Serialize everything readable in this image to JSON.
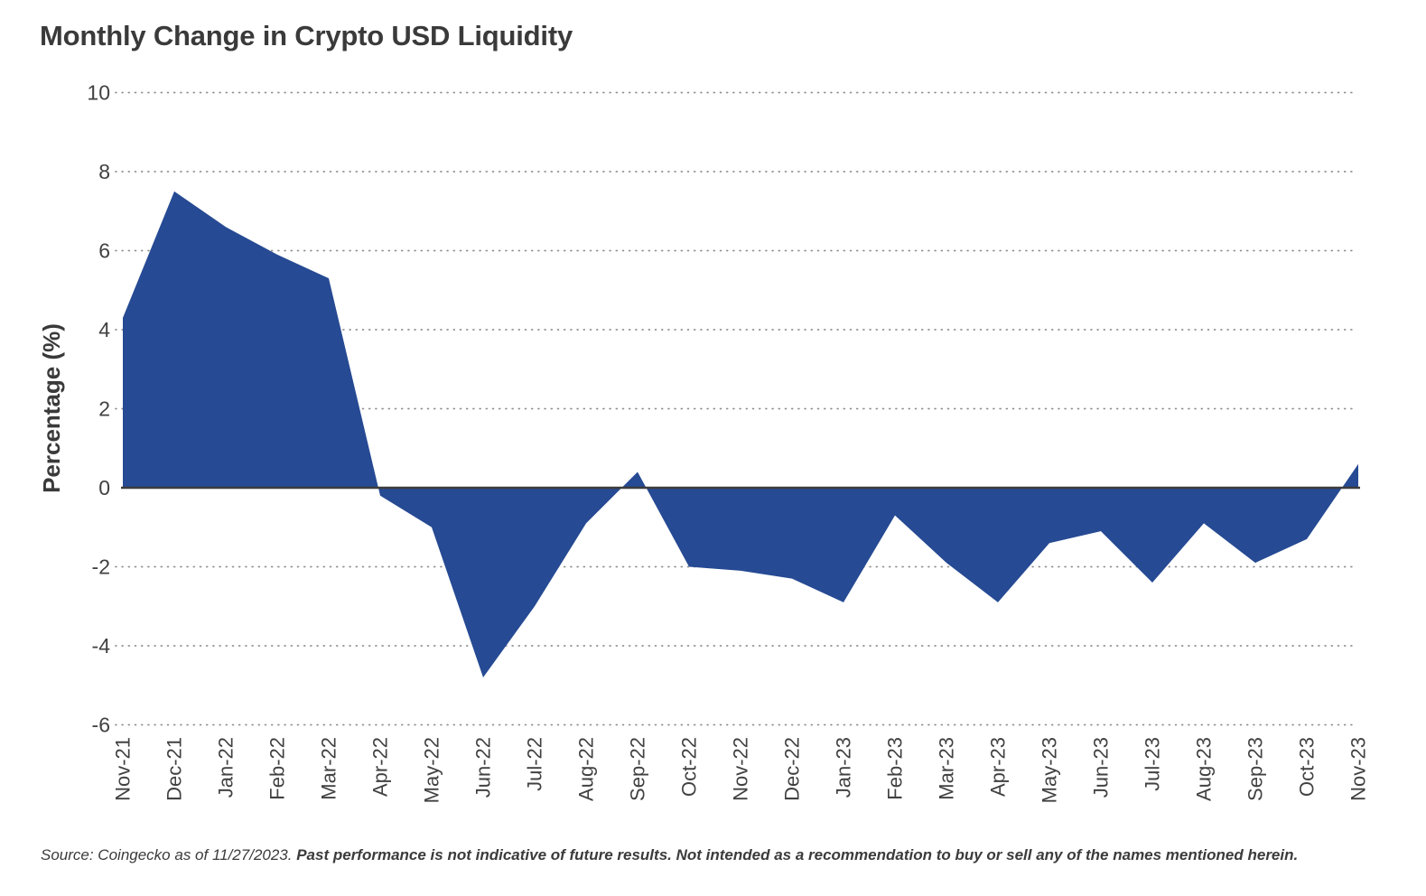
{
  "title": "Monthly Change in Crypto USD Liquidity",
  "source_note": {
    "regular": "Source: Coingecko as of 11/27/2023. ",
    "bold": "Past performance is not indicative of future results. Not intended as a recommendation to buy or sell any of the names mentioned herein."
  },
  "chart_data": {
    "type": "area",
    "title": "Monthly Change in Crypto USD Liquidity",
    "xlabel": "",
    "ylabel": "Percentage (%)",
    "ylim": [
      -6,
      10
    ],
    "yticks": [
      10,
      8,
      6,
      4,
      2,
      0,
      -2,
      -4,
      -6
    ],
    "grid": "horizontal dotted lines at each y tick; solid dark line at 0",
    "legend": "none",
    "fill_color": "#264A93",
    "categories": [
      "Nov-21",
      "Dec-21",
      "Jan-22",
      "Feb-22",
      "Mar-22",
      "Apr-22",
      "May-22",
      "Jun-22",
      "Jul-22",
      "Aug-22",
      "Sep-22",
      "Oct-22",
      "Nov-22",
      "Dec-22",
      "Jan-23",
      "Feb-23",
      "Mar-23",
      "Apr-23",
      "May-23",
      "Jun-23",
      "Jul-23",
      "Aug-23",
      "Sep-23",
      "Oct-23",
      "Nov-23"
    ],
    "values": [
      4.3,
      7.5,
      6.6,
      5.9,
      5.3,
      -0.2,
      -1.0,
      -4.8,
      -3.0,
      -0.9,
      0.4,
      -2.0,
      -2.1,
      -2.3,
      -2.9,
      -0.7,
      -1.9,
      -2.9,
      -1.4,
      -1.1,
      -2.4,
      -0.9,
      -1.9,
      -1.3,
      0.6
    ]
  },
  "colors": {
    "area_fill": "#264A93",
    "zero_line": "#3c3c3c",
    "grid_dots": "#8f8f8f",
    "text": "#3a3a3a"
  }
}
